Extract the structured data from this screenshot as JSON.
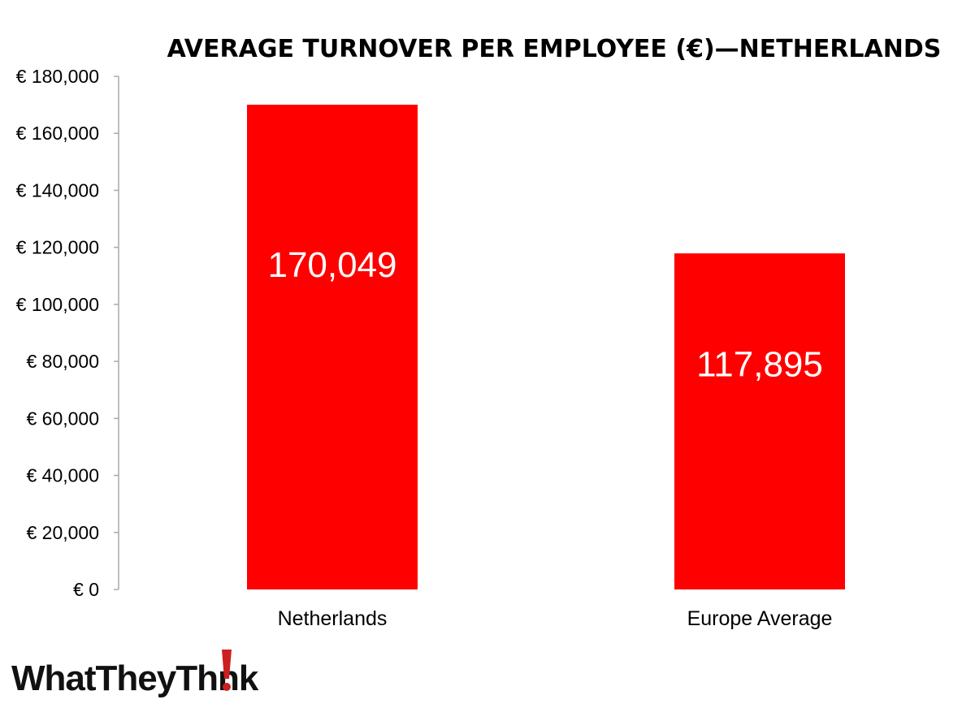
{
  "chart_data": {
    "type": "bar",
    "title": "AVERAGE TURNOVER PER EMPLOYEE (€)—NETHERLANDS",
    "categories": [
      "Netherlands",
      "Europe Average"
    ],
    "values": [
      170049,
      117895
    ],
    "data_labels": [
      "170,049",
      "117,895"
    ],
    "ylim": [
      0,
      180000
    ],
    "y_ticks": [
      0,
      20000,
      40000,
      60000,
      80000,
      100000,
      120000,
      140000,
      160000,
      180000
    ],
    "y_tick_labels": [
      "€ 0",
      "€ 20,000",
      "€ 40,000",
      "€ 60,000",
      "€ 80,000",
      "€ 100,000",
      "€ 120,000",
      "€ 140,000",
      "€ 160,000",
      "€ 180,000"
    ],
    "xlabel": "",
    "ylabel": "",
    "grid": false,
    "bar_color": "#ff0000",
    "data_label_color": "#ffffff"
  },
  "logo": {
    "text_before": "WhatTheyTh",
    "text_after": "nk",
    "accent_color": "#cc1f1f"
  }
}
